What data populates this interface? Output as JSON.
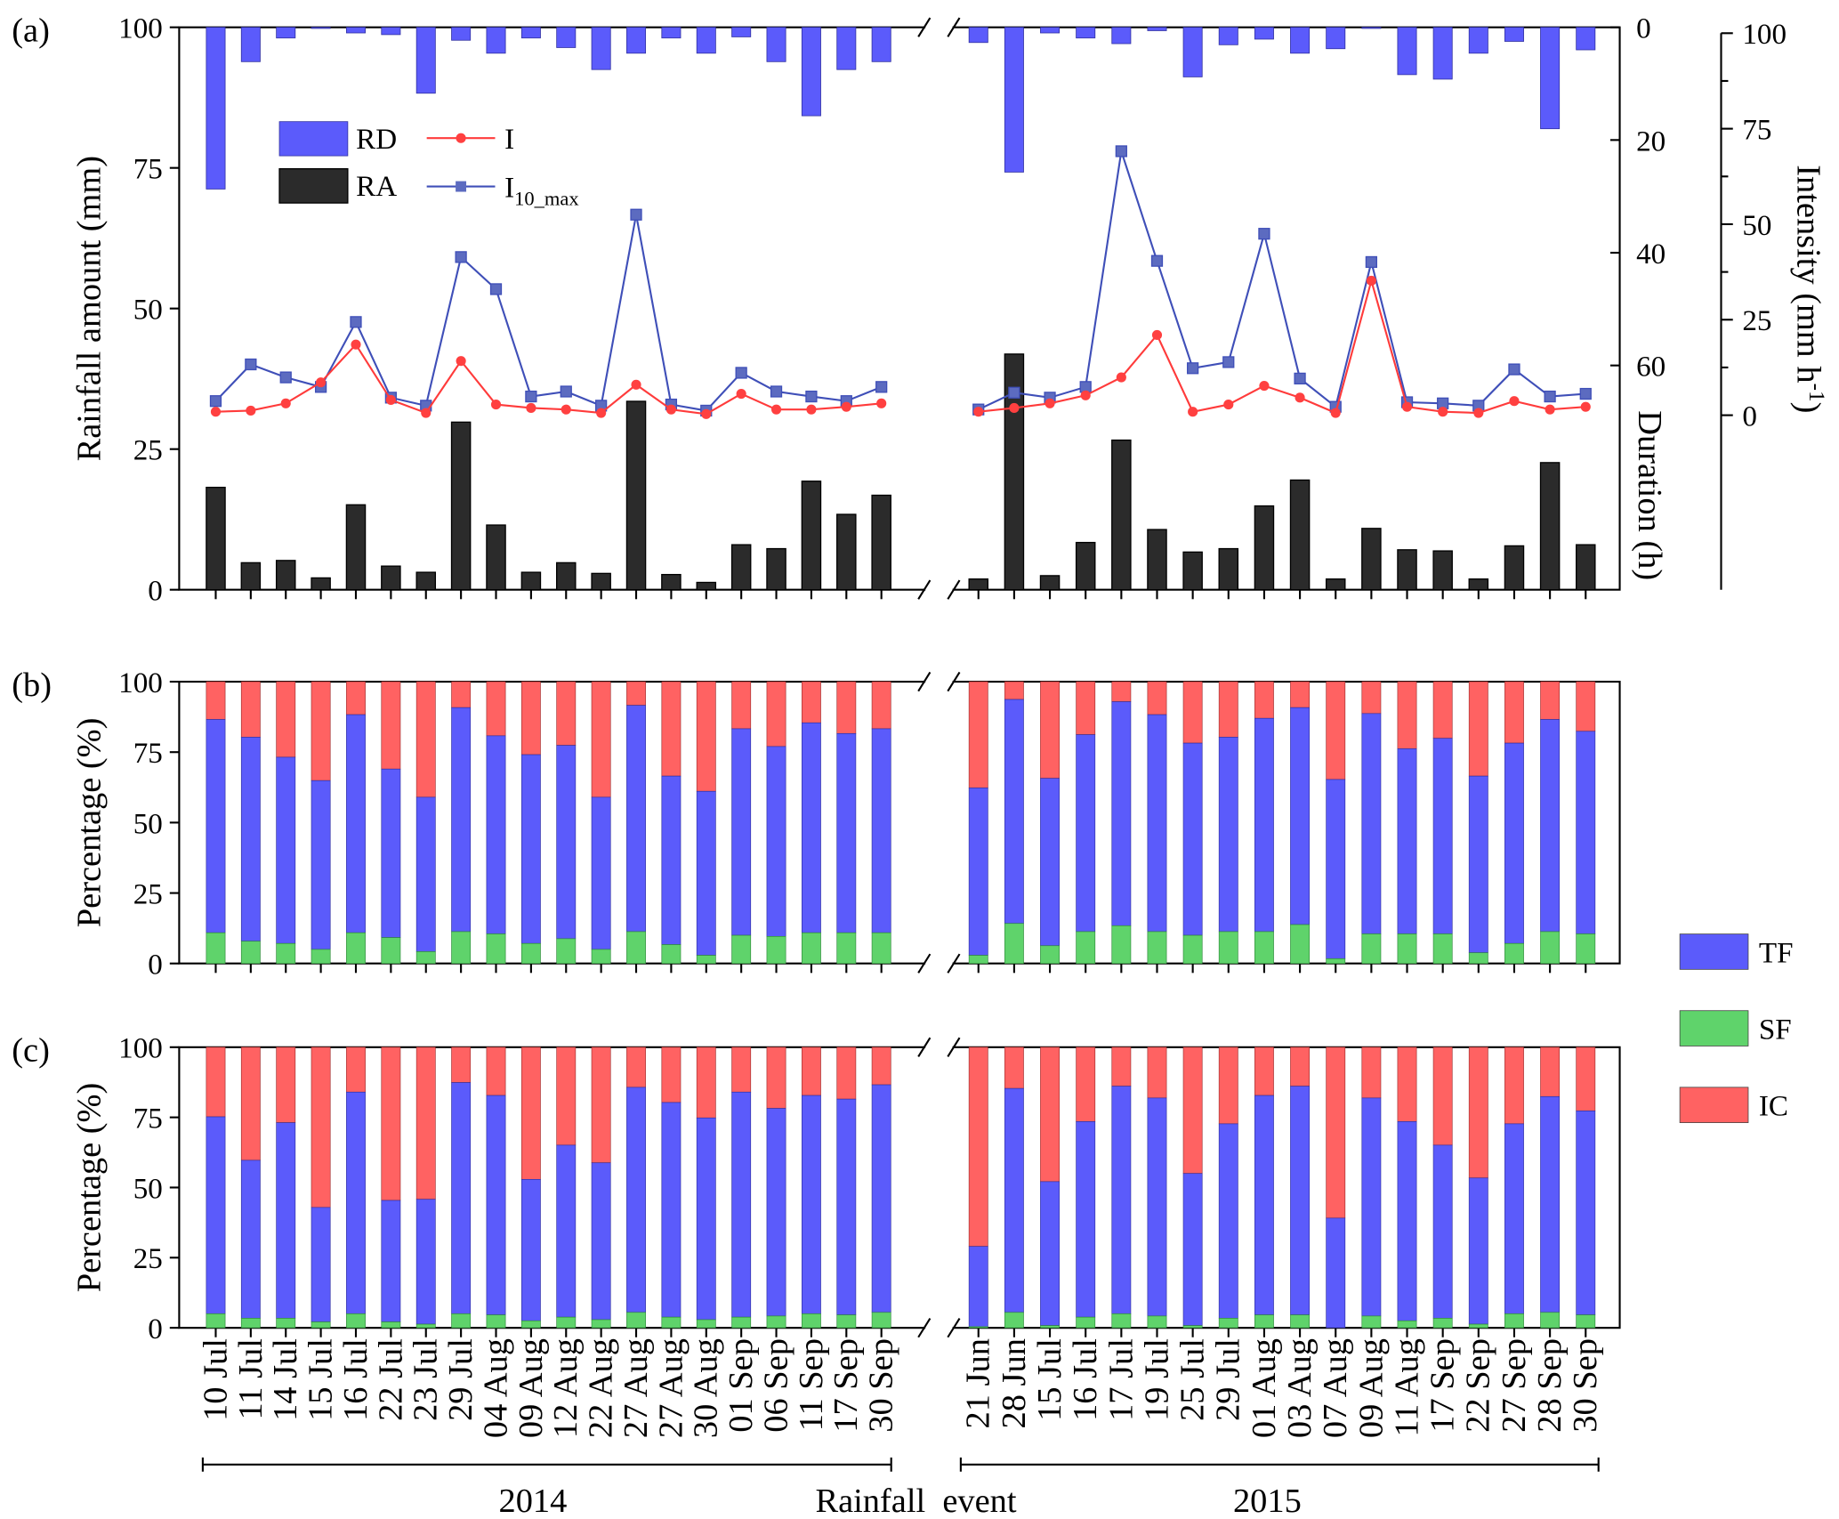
{
  "chart_data": {
    "type": "bar",
    "panel_labels": [
      "(a)",
      "(b)",
      "(c)"
    ],
    "xlabel": "Rainfall  event",
    "groups": [
      "2014",
      "2015"
    ],
    "categories": {
      "2014": [
        "10 Jul",
        "11 Jul",
        "14 Jul",
        "15 Jul",
        "16 Jul",
        "22 Jul",
        "23 Jul",
        "29 Jul",
        "04 Aug",
        "09 Aug",
        "12 Aug",
        "22 Aug",
        "27 Aug",
        "27 Aug",
        "30 Aug",
        "01 Sep",
        "06 Sep",
        "11 Sep",
        "17 Sep",
        "30 Sep"
      ],
      "2015": [
        "21 Jun",
        "28 Jun",
        "15 Jul",
        "16 Jul",
        "17 Jul",
        "19 Jul",
        "25 Jul",
        "29 Jul",
        "01 Aug",
        "03 Aug",
        "07 Aug",
        "09 Aug",
        "11 Aug",
        "17 Sep",
        "22 Sep",
        "27 Sep",
        "28 Sep",
        "30 Sep"
      ]
    },
    "panels": [
      {
        "id": "a",
        "ylabel": "Rainfall amount (mm)",
        "ylim": [
          0,
          100
        ],
        "yticks": [
          "0",
          "25",
          "50",
          "75",
          "100"
        ],
        "duration_axis": {
          "label": "Duration (h)",
          "ylim": [
            0,
            100
          ],
          "reversed": true,
          "ticks": [
            "0",
            "20",
            "40",
            "60"
          ]
        },
        "intensity_axis": {
          "label": "Intensity (mm h",
          "label_sup": "-1",
          "label_end": ")",
          "ylim": [
            0,
            100
          ],
          "ticks": [
            "0",
            "25",
            "50",
            "75",
            "100"
          ]
        },
        "legend": [
          {
            "name": "RD",
            "type": "bar",
            "color": "#5b5bfb"
          },
          {
            "name": "RA",
            "type": "bar",
            "color": "#2b2b2b"
          },
          {
            "name": "I",
            "type": "line",
            "color": "#ff3b3b"
          },
          {
            "name": "I",
            "sub": "10_max",
            "type": "line",
            "color": "#3f4fb8"
          }
        ],
        "series": {
          "RA": {
            "2014": [
              18.2,
              4.8,
              5.2,
              2.1,
              15.1,
              4.2,
              3.1,
              29.8,
              11.5,
              3.1,
              4.8,
              2.9,
              33.5,
              2.7,
              1.3,
              8.0,
              7.3,
              19.3,
              13.4,
              16.8
            ],
            "2015": [
              1.9,
              41.9,
              2.5,
              8.4,
              26.6,
              10.7,
              6.7,
              7.3,
              14.9,
              19.5,
              1.9,
              10.9,
              7.1,
              6.9,
              1.9,
              7.8,
              22.6,
              8.0
            ]
          },
          "RD": {
            "2014": [
              28.7,
              6.1,
              1.9,
              0.2,
              1.0,
              1.3,
              11.7,
              2.3,
              4.6,
              1.9,
              3.6,
              7.5,
              4.6,
              1.9,
              4.6,
              1.7,
              6.1,
              15.7,
              7.5,
              6.1
            ],
            "2015": [
              2.7,
              25.7,
              1.0,
              1.9,
              2.9,
              0.6,
              8.8,
              3.1,
              2.1,
              4.6,
              3.8,
              0.2,
              8.4,
              9.2,
              4.6,
              2.5,
              18.0,
              4.0
            ]
          },
          "I": {
            "2014": [
              0.9,
              1.2,
              3.1,
              8.6,
              18.5,
              4.0,
              0.6,
              14.2,
              2.8,
              1.9,
              1.5,
              0.6,
              8.0,
              1.5,
              0.3,
              5.6,
              1.5,
              1.5,
              2.2,
              3.1
            ],
            "2015": [
              0.9,
              1.9,
              3.1,
              5.2,
              9.9,
              21.0,
              0.9,
              2.8,
              7.7,
              4.6,
              0.6,
              35.2,
              2.2,
              0.9,
              0.6,
              3.7,
              1.5,
              2.2
            ]
          },
          "I10_max": {
            "2014": [
              3.7,
              13.3,
              9.9,
              7.4,
              24.4,
              4.6,
              2.5,
              41.4,
              33.0,
              4.9,
              6.2,
              2.5,
              52.5,
              2.8,
              1.2,
              11.1,
              6.2,
              4.9,
              3.7,
              7.4
            ],
            "2015": [
              1.5,
              5.9,
              4.6,
              7.4,
              69.1,
              40.4,
              12.3,
              13.9,
              47.5,
              9.6,
              2.2,
              40.1,
              3.4,
              3.1,
              2.5,
              12.0,
              4.9,
              5.6
            ]
          }
        }
      },
      {
        "id": "b",
        "ylabel": "Percentage (%)",
        "ylim": [
          0,
          100
        ],
        "yticks": [
          "0",
          "25",
          "50",
          "75",
          "100"
        ],
        "stack_cumulative": {
          "SF": {
            "2014": [
              10.9,
              7.9,
              7.1,
              5.0,
              10.9,
              9.2,
              4.2,
              11.3,
              10.5,
              7.1,
              8.8,
              5.0,
              11.3,
              6.7,
              2.9,
              10.0,
              9.6,
              10.9,
              10.9,
              10.9
            ],
            "2015": [
              2.9,
              14.2,
              6.3,
              11.3,
              13.4,
              11.3,
              10.0,
              11.3,
              11.3,
              13.8,
              1.7,
              10.5,
              10.5,
              10.5,
              3.8,
              7.1,
              11.3,
              10.5
            ]
          },
          "SF+TF": {
            "2014": [
              86.6,
              80.3,
              73.2,
              64.9,
              88.3,
              69.0,
              59.0,
              90.8,
              80.8,
              74.1,
              77.4,
              59.0,
              91.6,
              66.5,
              61.1,
              83.3,
              77.0,
              85.4,
              81.6,
              83.3
            ],
            "2015": [
              62.3,
              93.7,
              65.7,
              81.2,
              92.9,
              88.3,
              78.2,
              80.3,
              87.0,
              90.8,
              65.3,
              88.7,
              76.2,
              79.9,
              66.5,
              78.2,
              86.6,
              82.4
            ]
          }
        }
      },
      {
        "id": "c",
        "ylabel": "Percentage (%)",
        "ylim": [
          0,
          100
        ],
        "yticks": [
          "0",
          "25",
          "50",
          "75",
          "100"
        ],
        "stack_cumulative": {
          "SF": {
            "2014": [
              5.0,
              3.4,
              3.4,
              2.1,
              5.0,
              2.1,
              1.3,
              5.0,
              4.6,
              2.5,
              3.8,
              2.9,
              5.5,
              3.8,
              2.9,
              3.8,
              4.2,
              5.0,
              4.6,
              5.5
            ],
            "2015": [
              0.4,
              5.5,
              0.8,
              3.8,
              5.0,
              4.2,
              0.8,
              3.4,
              4.6,
              4.6,
              0.0,
              4.2,
              2.5,
              3.4,
              1.3,
              5.0,
              5.5,
              4.6
            ]
          },
          "SF+TF": {
            "2014": [
              75.2,
              59.7,
              73.1,
              42.9,
              84.0,
              45.4,
              45.8,
              87.4,
              82.8,
              52.9,
              65.1,
              58.8,
              85.7,
              80.3,
              74.8,
              84.0,
              78.2,
              82.8,
              81.5,
              86.6
            ],
            "2015": [
              29.0,
              85.3,
              52.1,
              73.5,
              86.1,
              81.9,
              55.0,
              72.7,
              82.8,
              86.1,
              39.1,
              81.9,
              73.5,
              65.1,
              53.4,
              72.7,
              82.4,
              77.3
            ]
          }
        }
      }
    ],
    "stack_legend": [
      {
        "name": "TF",
        "color": "#5b5bfb"
      },
      {
        "name": "SF",
        "color": "#5fd36b"
      },
      {
        "name": "IC",
        "color": "#ff6262"
      }
    ]
  }
}
